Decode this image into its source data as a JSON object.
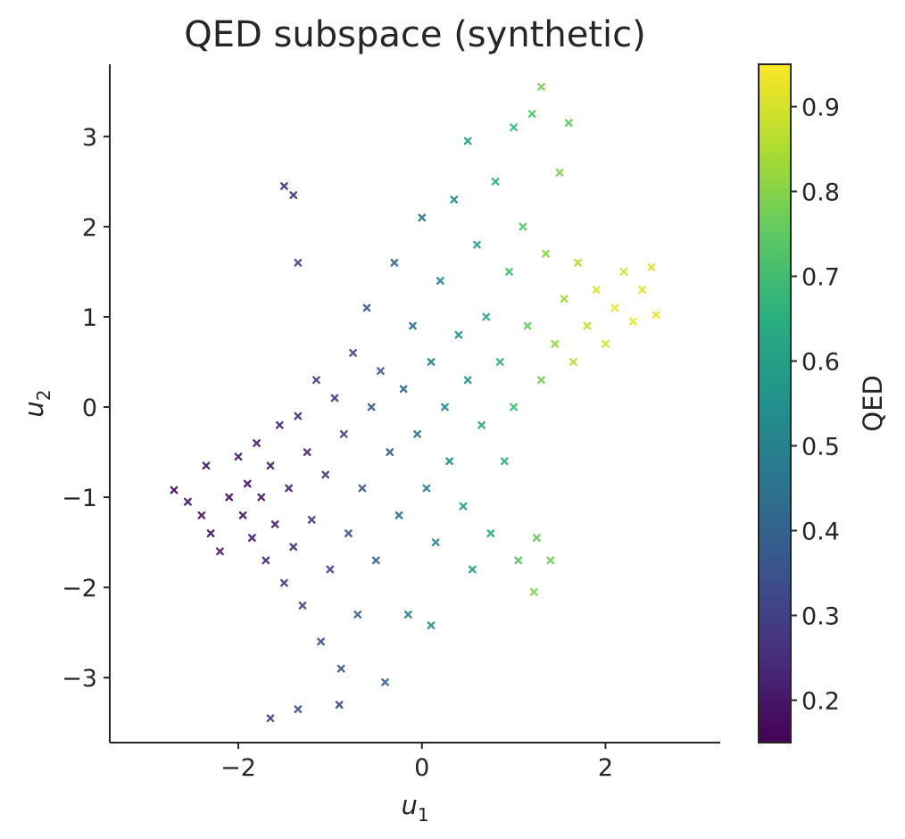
{
  "chart_data": {
    "type": "scatter",
    "title": "QED subspace (synthetic)",
    "xlabel_base": "u",
    "xlabel_sub": "1",
    "ylabel_base": "u",
    "ylabel_sub": "2",
    "xlim": [
      -3.4,
      3.25
    ],
    "ylim": [
      -3.72,
      3.8
    ],
    "x_ticks": [
      {
        "value": -2,
        "label": "−2"
      },
      {
        "value": 0,
        "label": "0"
      },
      {
        "value": 2,
        "label": "2"
      }
    ],
    "y_ticks": [
      {
        "value": -3,
        "label": "−3"
      },
      {
        "value": -2,
        "label": "−2"
      },
      {
        "value": -1,
        "label": "−1"
      },
      {
        "value": 0,
        "label": "0"
      },
      {
        "value": 1,
        "label": "1"
      },
      {
        "value": 2,
        "label": "2"
      },
      {
        "value": 3,
        "label": "3"
      }
    ],
    "marker": "x",
    "grid": false,
    "colorbar": {
      "label": "QED",
      "colormap": "viridis",
      "range": [
        0.15,
        0.95
      ],
      "ticks": [
        {
          "value": 0.2,
          "label": "0.2"
        },
        {
          "value": 0.3,
          "label": "0.3"
        },
        {
          "value": 0.4,
          "label": "0.4"
        },
        {
          "value": 0.5,
          "label": "0.5"
        },
        {
          "value": 0.6,
          "label": "0.6"
        },
        {
          "value": 0.7,
          "label": "0.7"
        },
        {
          "value": 0.8,
          "label": "0.8"
        },
        {
          "value": 0.9,
          "label": "0.9"
        }
      ]
    },
    "points": [
      {
        "x": -2.7,
        "y": -0.92,
        "qed": 0.18
      },
      {
        "x": -2.55,
        "y": -1.05,
        "qed": 0.19
      },
      {
        "x": -2.4,
        "y": -1.2,
        "qed": 0.19
      },
      {
        "x": -2.35,
        "y": -0.65,
        "qed": 0.2
      },
      {
        "x": -2.3,
        "y": -1.4,
        "qed": 0.2
      },
      {
        "x": -2.2,
        "y": -1.6,
        "qed": 0.21
      },
      {
        "x": -2.1,
        "y": -1.0,
        "qed": 0.18
      },
      {
        "x": -2.0,
        "y": -0.55,
        "qed": 0.2
      },
      {
        "x": -1.95,
        "y": -1.2,
        "qed": 0.2
      },
      {
        "x": -1.9,
        "y": -0.85,
        "qed": 0.19
      },
      {
        "x": -1.85,
        "y": -1.45,
        "qed": 0.21
      },
      {
        "x": -1.8,
        "y": -0.4,
        "qed": 0.21
      },
      {
        "x": -1.75,
        "y": -1.0,
        "qed": 0.2
      },
      {
        "x": -1.7,
        "y": -1.7,
        "qed": 0.24
      },
      {
        "x": -1.65,
        "y": -0.65,
        "qed": 0.21
      },
      {
        "x": -1.6,
        "y": -1.3,
        "qed": 0.22
      },
      {
        "x": -1.55,
        "y": -0.2,
        "qed": 0.23
      },
      {
        "x": -1.5,
        "y": -1.95,
        "qed": 0.28
      },
      {
        "x": -1.45,
        "y": -0.9,
        "qed": 0.22
      },
      {
        "x": -1.4,
        "y": -1.55,
        "qed": 0.26
      },
      {
        "x": -1.35,
        "y": -0.1,
        "qed": 0.25
      },
      {
        "x": -1.3,
        "y": -2.2,
        "qed": 0.32
      },
      {
        "x": -1.25,
        "y": -0.5,
        "qed": 0.24
      },
      {
        "x": -1.2,
        "y": -1.25,
        "qed": 0.27
      },
      {
        "x": -1.15,
        "y": 0.3,
        "qed": 0.29
      },
      {
        "x": -1.1,
        "y": -2.6,
        "qed": 0.35
      },
      {
        "x": -1.05,
        "y": -0.75,
        "qed": 0.27
      },
      {
        "x": -1.0,
        "y": -1.8,
        "qed": 0.33
      },
      {
        "x": -0.95,
        "y": 0.1,
        "qed": 0.3
      },
      {
        "x": -0.9,
        "y": -3.3,
        "qed": 0.33
      },
      {
        "x": -0.88,
        "y": -2.9,
        "qed": 0.36
      },
      {
        "x": -0.85,
        "y": -0.3,
        "qed": 0.3
      },
      {
        "x": -0.8,
        "y": -1.4,
        "qed": 0.34
      },
      {
        "x": -0.75,
        "y": 0.6,
        "qed": 0.33
      },
      {
        "x": -0.7,
        "y": -2.3,
        "qed": 0.38
      },
      {
        "x": -0.65,
        "y": -0.9,
        "qed": 0.35
      },
      {
        "x": -0.6,
        "y": 1.1,
        "qed": 0.36
      },
      {
        "x": -0.55,
        "y": 0.0,
        "qed": 0.36
      },
      {
        "x": -0.5,
        "y": -1.7,
        "qed": 0.42
      },
      {
        "x": -0.45,
        "y": 0.4,
        "qed": 0.38
      },
      {
        "x": -0.4,
        "y": -3.05,
        "qed": 0.4
      },
      {
        "x": -0.35,
        "y": -0.5,
        "qed": 0.4
      },
      {
        "x": -0.3,
        "y": 1.6,
        "qed": 0.4
      },
      {
        "x": -0.25,
        "y": -1.2,
        "qed": 0.44
      },
      {
        "x": -0.2,
        "y": 0.2,
        "qed": 0.42
      },
      {
        "x": -0.15,
        "y": -2.3,
        "qed": 0.48
      },
      {
        "x": -0.1,
        "y": 0.9,
        "qed": 0.44
      },
      {
        "x": -0.05,
        "y": -0.3,
        "qed": 0.45
      },
      {
        "x": 0.0,
        "y": 2.1,
        "qed": 0.47
      },
      {
        "x": 0.05,
        "y": -0.9,
        "qed": 0.49
      },
      {
        "x": 0.1,
        "y": 0.5,
        "qed": 0.49
      },
      {
        "x": 0.1,
        "y": -2.42,
        "qed": 0.53
      },
      {
        "x": 0.15,
        "y": -1.5,
        "qed": 0.52
      },
      {
        "x": 0.2,
        "y": 1.4,
        "qed": 0.51
      },
      {
        "x": 0.25,
        "y": 0.0,
        "qed": 0.52
      },
      {
        "x": 0.3,
        "y": -0.6,
        "qed": 0.54
      },
      {
        "x": 0.35,
        "y": 2.3,
        "qed": 0.53
      },
      {
        "x": 0.4,
        "y": 0.8,
        "qed": 0.56
      },
      {
        "x": 0.45,
        "y": -1.1,
        "qed": 0.58
      },
      {
        "x": 0.5,
        "y": 0.3,
        "qed": 0.58
      },
      {
        "x": 0.5,
        "y": 2.95,
        "qed": 0.58
      },
      {
        "x": 0.55,
        "y": -1.8,
        "qed": 0.6
      },
      {
        "x": 0.6,
        "y": 1.8,
        "qed": 0.6
      },
      {
        "x": 0.65,
        "y": -0.2,
        "qed": 0.62
      },
      {
        "x": 0.7,
        "y": 1.0,
        "qed": 0.64
      },
      {
        "x": 0.75,
        "y": -1.4,
        "qed": 0.63
      },
      {
        "x": 0.8,
        "y": 2.5,
        "qed": 0.66
      },
      {
        "x": 0.85,
        "y": 0.5,
        "qed": 0.67
      },
      {
        "x": 0.9,
        "y": -0.6,
        "qed": 0.67
      },
      {
        "x": 0.95,
        "y": 1.5,
        "qed": 0.7
      },
      {
        "x": 1.0,
        "y": 0.0,
        "qed": 0.7
      },
      {
        "x": 1.0,
        "y": 3.1,
        "qed": 0.68
      },
      {
        "x": 1.05,
        "y": -1.7,
        "qed": 0.73
      },
      {
        "x": 1.1,
        "y": 2.0,
        "qed": 0.74
      },
      {
        "x": 1.15,
        "y": 0.9,
        "qed": 0.76
      },
      {
        "x": 1.2,
        "y": 3.25,
        "qed": 0.73
      },
      {
        "x": 1.22,
        "y": -2.05,
        "qed": 0.79
      },
      {
        "x": 1.25,
        "y": -1.45,
        "qed": 0.76
      },
      {
        "x": 1.3,
        "y": 3.55,
        "qed": 0.78
      },
      {
        "x": 1.3,
        "y": 0.3,
        "qed": 0.78
      },
      {
        "x": 1.35,
        "y": 1.7,
        "qed": 0.8
      },
      {
        "x": 1.4,
        "y": -1.7,
        "qed": 0.77
      },
      {
        "x": 1.45,
        "y": 0.7,
        "qed": 0.82
      },
      {
        "x": 1.5,
        "y": 2.6,
        "qed": 0.79
      },
      {
        "x": 1.55,
        "y": 1.2,
        "qed": 0.84
      },
      {
        "x": 1.6,
        "y": 3.15,
        "qed": 0.76
      },
      {
        "x": 1.65,
        "y": 0.5,
        "qed": 0.85
      },
      {
        "x": 1.7,
        "y": 1.6,
        "qed": 0.86
      },
      {
        "x": 1.8,
        "y": 0.9,
        "qed": 0.88
      },
      {
        "x": 1.9,
        "y": 1.3,
        "qed": 0.9
      },
      {
        "x": 2.0,
        "y": 0.7,
        "qed": 0.9
      },
      {
        "x": 2.1,
        "y": 1.1,
        "qed": 0.92
      },
      {
        "x": 2.2,
        "y": 1.5,
        "qed": 0.9
      },
      {
        "x": 2.3,
        "y": 0.95,
        "qed": 0.93
      },
      {
        "x": 2.4,
        "y": 1.3,
        "qed": 0.91
      },
      {
        "x": 2.5,
        "y": 1.55,
        "qed": 0.9
      },
      {
        "x": 2.55,
        "y": 1.02,
        "qed": 0.92
      },
      {
        "x": -1.5,
        "y": 2.45,
        "qed": 0.27
      },
      {
        "x": -1.4,
        "y": 2.35,
        "qed": 0.28
      },
      {
        "x": -1.35,
        "y": 1.6,
        "qed": 0.31
      },
      {
        "x": -1.65,
        "y": -3.45,
        "qed": 0.31
      },
      {
        "x": -1.35,
        "y": -3.35,
        "qed": 0.34
      }
    ]
  }
}
